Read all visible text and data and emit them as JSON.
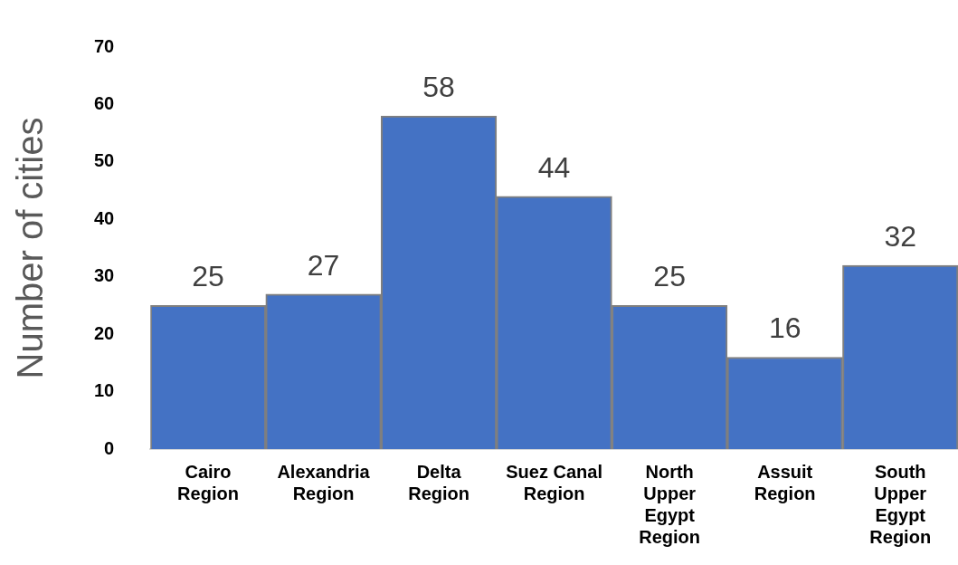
{
  "chart_data": {
    "type": "bar",
    "ylabel": "Number of cities",
    "categories": [
      "Cairo Region",
      "Alexandria Region",
      "Delta Region",
      "Suez Canal Region",
      "North Upper Egypt Region",
      "Assuit Region",
      "South Upper Egypt Region"
    ],
    "values": [
      25,
      27,
      58,
      44,
      25,
      16,
      32
    ],
    "color": "#4472c4",
    "ylim": [
      0,
      70
    ],
    "yticks": [
      0,
      10,
      20,
      30,
      40,
      50,
      60,
      70
    ],
    "grid": false,
    "legend": false,
    "data_labels": true
  }
}
